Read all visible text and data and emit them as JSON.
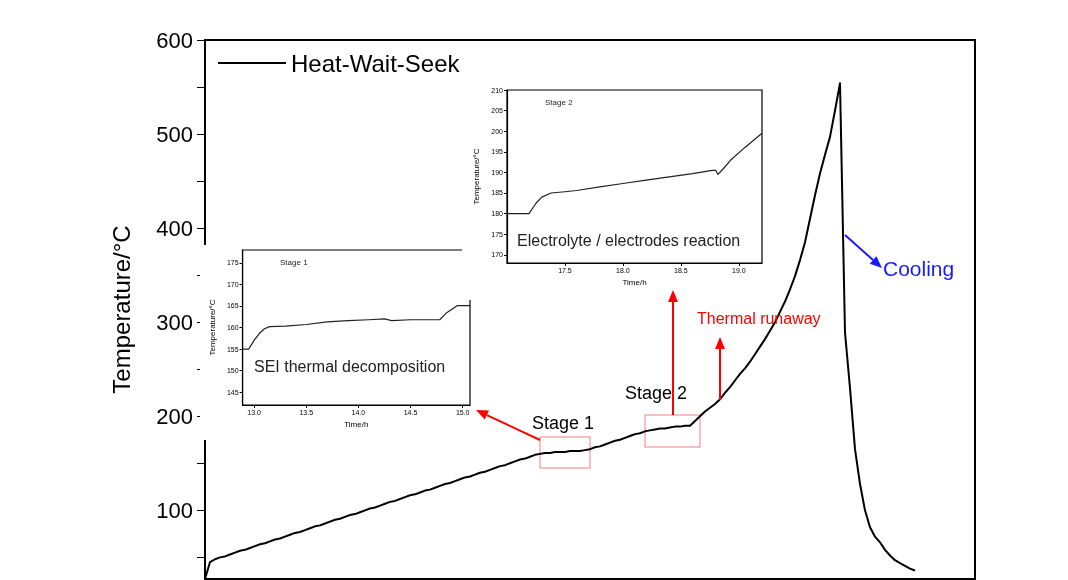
{
  "chart_data": [
    {
      "type": "line",
      "ylabel": "Temperature/°C",
      "legend": "top left",
      "marker": "none",
      "tick_labels": "y",
      "categories": [
        null,
        null,
        null,
        null,
        null,
        null,
        null,
        null,
        null,
        null,
        null,
        null,
        null,
        null,
        null,
        null,
        null,
        null,
        null,
        null,
        null,
        null,
        null,
        null,
        null,
        null,
        null,
        null,
        null,
        null,
        null,
        null,
        null,
        null,
        null,
        null,
        null,
        null,
        null,
        null,
        null,
        null,
        null,
        null,
        null,
        null,
        null,
        null,
        null,
        null,
        null,
        null,
        null,
        null,
        null,
        null,
        null,
        null,
        null,
        null,
        null,
        null,
        null,
        null,
        null,
        null,
        null,
        null,
        null,
        null,
        null,
        null,
        null,
        null,
        null,
        null,
        null,
        null,
        null,
        null,
        null,
        null,
        null,
        null,
        null,
        null,
        null,
        null,
        null,
        null,
        null,
        null,
        null,
        null,
        null,
        null,
        null,
        null,
        null,
        null,
        null,
        null,
        null,
        null,
        null,
        null,
        null,
        null,
        null,
        null,
        null,
        null,
        null,
        null,
        null,
        null,
        null,
        null,
        null,
        null,
        null,
        null,
        null,
        null,
        null,
        null,
        null,
        null,
        null,
        null,
        null,
        null,
        null,
        null,
        null,
        null,
        null,
        null,
        null,
        null,
        null,
        null,
        null,
        null,
        null,
        null,
        null,
        null,
        null,
        null,
        null,
        null,
        null,
        null,
        null
      ],
      "series": [
        {
          "name": "Heat-Wait-Seek",
          "color": "#000000",
          "values": [
            27,
            45,
            48,
            50,
            51,
            53,
            55,
            57,
            58,
            60,
            62,
            64,
            65,
            67,
            69,
            70,
            72,
            74,
            76,
            77,
            79,
            81,
            83,
            84,
            86,
            88,
            90,
            91,
            93,
            95,
            96,
            98,
            100,
            102,
            103,
            105,
            107,
            109,
            110,
            112,
            114,
            116,
            117,
            119,
            121,
            122,
            124,
            126,
            128,
            129,
            131,
            133,
            135,
            136,
            138,
            140,
            141,
            143,
            145,
            147,
            148,
            150,
            152,
            154,
            155,
            157,
            159,
            160,
            161,
            161,
            162,
            162,
            162,
            163,
            163,
            163,
            164,
            165,
            167,
            168,
            170,
            172,
            174,
            175,
            177,
            179,
            181,
            182,
            184,
            185,
            186,
            187,
            187,
            188,
            189,
            189,
            190,
            190,
            195,
            200,
            205,
            209,
            213,
            218,
            225,
            231,
            238,
            245,
            251,
            258,
            266,
            274,
            282,
            291,
            300,
            311,
            322,
            335,
            349,
            366,
            385,
            410,
            435,
            458,
            478,
            497,
            525,
            554,
            289,
            230,
            165,
            128,
            100,
            82,
            72,
            66,
            58,
            52,
            47,
            44,
            41,
            38,
            36,
            null,
            null,
            null,
            null,
            null,
            null,
            null,
            null,
            null,
            null,
            null,
            null
          ]
        }
      ],
      "ylim": [
        27,
        600
      ],
      "yticks": [
        {
          "value": 50,
          "label": null
        },
        100,
        {
          "value": 150,
          "label": null
        },
        200,
        {
          "value": 250,
          "label": null
        },
        300,
        {
          "value": 350,
          "label": null
        },
        400,
        {
          "value": 450,
          "label": null
        },
        500,
        {
          "value": 550,
          "label": null
        },
        600
      ],
      "annotations": [
        "Stage 1",
        "Stage 2",
        "Thermal runaway",
        "Cooling"
      ]
    },
    {
      "type": "line",
      "xlabel": "Time/h",
      "ylabel": "Temperature/°C",
      "marker": "none",
      "x": [
        12.89,
        12.95,
        13.0,
        13.05,
        13.1,
        13.15,
        13.3,
        13.5,
        13.7,
        13.9,
        14.1,
        14.25,
        14.32,
        14.5,
        14.7,
        14.78,
        14.85,
        14.95,
        15.07
      ],
      "series": [
        {
          "color": "#222222",
          "values": [
            155,
            155,
            157,
            158.6,
            159.7,
            160.2,
            160.3,
            160.7,
            161.3,
            161.6,
            161.8,
            162.0,
            161.6,
            161.8,
            161.8,
            161.8,
            163.5,
            165.1,
            165.1
          ]
        }
      ],
      "xlim": [
        12.89,
        15.07
      ],
      "xticks": [
        {
          "value": 13,
          "label": "13.0"
        },
        13.5,
        {
          "value": 14,
          "label": "14.0"
        },
        14.5,
        {
          "value": 15,
          "label": "15.0"
        }
      ],
      "ylim": [
        142,
        178
      ],
      "yticks": [
        145,
        150,
        155,
        160,
        165,
        170,
        175
      ],
      "annotations": [
        "Stage 1",
        "SEI thermal decomposition"
      ]
    },
    {
      "type": "line",
      "xlabel": "Time/h",
      "ylabel": "Temperature/°C",
      "marker": "none",
      "x": [
        17.0,
        17.19,
        17.25,
        17.3,
        17.38,
        17.5,
        17.6,
        17.8,
        18.0,
        18.2,
        18.4,
        18.6,
        18.77,
        18.8,
        18.82,
        18.87,
        18.93,
        19.05,
        19.2
      ],
      "series": [
        {
          "color": "#222222",
          "values": [
            180,
            180,
            182.5,
            184,
            185,
            185.3,
            185.6,
            186.5,
            187.3,
            188.1,
            188.9,
            189.7,
            190.5,
            190.5,
            189.5,
            191,
            193,
            196,
            199.5
          ]
        }
      ],
      "xlim": [
        17.0,
        19.2
      ],
      "xticks": [
        17.5,
        {
          "value": 18,
          "label": "18.0"
        },
        18.5,
        {
          "value": 19,
          "label": "19.0"
        }
      ],
      "ylim": [
        168,
        210
      ],
      "yticks": [
        170,
        175,
        180,
        185,
        190,
        195,
        200,
        205,
        210
      ],
      "annotations": [
        "Stage 2",
        "Electrolyte / electrodes reaction"
      ]
    }
  ]
}
